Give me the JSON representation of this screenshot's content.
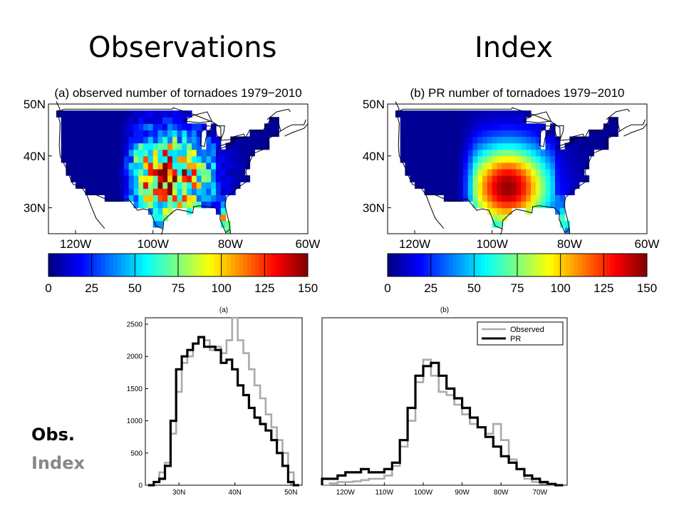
{
  "slide": {
    "heading_left": "Observations",
    "heading_right": "Index",
    "label_obs": "Obs.",
    "label_obs_dot_color": "#1f5fb4",
    "label_index": "Index"
  },
  "colormap": "jet",
  "chart_data": [
    {
      "type": "heatmap",
      "title": "(a) observed number of tornadoes 1979−2010",
      "x_ticks": [
        "120W",
        "100W",
        "80W",
        "60W"
      ],
      "y_ticks": [
        "30N",
        "40N",
        "50N"
      ],
      "xlim": [
        "127W",
        "60W"
      ],
      "ylim": [
        "25N",
        "50N"
      ],
      "colorbar_ticks": [
        "0",
        "25",
        "50",
        "75",
        "100",
        "125",
        "150"
      ],
      "colorbar_range": [
        0,
        150
      ],
      "pattern": "noisy",
      "hotspot": {
        "lon": -96,
        "lat": 36,
        "peak_value": 150
      }
    },
    {
      "type": "heatmap",
      "title": "(b) PR number of tornadoes 1979−2010",
      "x_ticks": [
        "120W",
        "100W",
        "80W",
        "60W"
      ],
      "y_ticks": [
        "30N",
        "40N",
        "50N"
      ],
      "xlim": [
        "127W",
        "60W"
      ],
      "ylim": [
        "25N",
        "50N"
      ],
      "colorbar_ticks": [
        "0",
        "25",
        "50",
        "75",
        "100",
        "125",
        "150"
      ],
      "colorbar_range": [
        0,
        150
      ],
      "pattern": "smooth",
      "hotspot": {
        "lon": -96,
        "lat": 34,
        "peak_value": 150
      }
    },
    {
      "type": "line",
      "step": true,
      "title": "(a)",
      "x_ticks": [
        "30N",
        "40N",
        "50N"
      ],
      "y_ticks": [
        "0",
        "500",
        "1000",
        "1500",
        "2000",
        "2500"
      ],
      "xlim": [
        24,
        52
      ],
      "ylim": [
        0,
        2600
      ],
      "series": [
        {
          "name": "Observed",
          "color": "#aaaaaa",
          "x": [
            25,
            26,
            27,
            28,
            29,
            30,
            31,
            32,
            33,
            34,
            35,
            36,
            37,
            38,
            39,
            40,
            41,
            42,
            43,
            44,
            45,
            46,
            47,
            48,
            49,
            50,
            51
          ],
          "values": [
            0,
            50,
            200,
            350,
            800,
            1450,
            1900,
            2000,
            2200,
            2300,
            2250,
            2100,
            2150,
            2050,
            2250,
            2600,
            2250,
            2050,
            1800,
            1550,
            1350,
            1100,
            900,
            700,
            500,
            200,
            0
          ]
        },
        {
          "name": "PR",
          "color": "#000000",
          "x": [
            25,
            26,
            27,
            28,
            29,
            30,
            31,
            32,
            33,
            34,
            35,
            36,
            37,
            38,
            39,
            40,
            41,
            42,
            43,
            44,
            45,
            46,
            47,
            48,
            49,
            50,
            51
          ],
          "values": [
            0,
            50,
            100,
            300,
            1000,
            1800,
            2000,
            2100,
            2200,
            2300,
            2150,
            2150,
            2100,
            1900,
            1950,
            1800,
            1550,
            1400,
            1200,
            1050,
            950,
            850,
            700,
            500,
            300,
            50,
            0
          ]
        }
      ]
    },
    {
      "type": "line",
      "step": true,
      "title": "(b)",
      "x_ticks": [
        "120W",
        "110W",
        "100W",
        "90W",
        "80W",
        "70W"
      ],
      "xlim": [
        -126,
        -63
      ],
      "ylim": [
        0,
        2600
      ],
      "legend": {
        "position": "top-right",
        "entries": [
          "Observed",
          "PR"
        ]
      },
      "series": [
        {
          "name": "Observed",
          "color": "#aaaaaa",
          "x": [
            -125,
            -123,
            -121,
            -119,
            -117,
            -115,
            -113,
            -111,
            -109,
            -107,
            -105,
            -103,
            -101,
            -99,
            -97,
            -95,
            -93,
            -91,
            -89,
            -87,
            -85,
            -83,
            -81,
            -79,
            -77,
            -75,
            -73,
            -71,
            -69,
            -67,
            -65
          ],
          "values": [
            0,
            30,
            50,
            50,
            60,
            80,
            100,
            100,
            150,
            300,
            600,
            1000,
            1600,
            1950,
            1700,
            1450,
            1400,
            1250,
            1100,
            950,
            900,
            800,
            950,
            700,
            400,
            250,
            100,
            50,
            20,
            0,
            0
          ]
        },
        {
          "name": "PR",
          "color": "#000000",
          "x": [
            -125,
            -123,
            -121,
            -119,
            -117,
            -115,
            -113,
            -111,
            -109,
            -107,
            -105,
            -103,
            -101,
            -99,
            -97,
            -95,
            -93,
            -91,
            -89,
            -87,
            -85,
            -83,
            -81,
            -79,
            -77,
            -75,
            -73,
            -71,
            -69,
            -67,
            -65
          ],
          "values": [
            100,
            100,
            150,
            200,
            200,
            250,
            200,
            200,
            250,
            350,
            700,
            1200,
            1700,
            1850,
            1900,
            1700,
            1500,
            1350,
            1200,
            1050,
            900,
            750,
            600,
            450,
            350,
            250,
            150,
            100,
            50,
            20,
            0
          ]
        }
      ]
    }
  ]
}
